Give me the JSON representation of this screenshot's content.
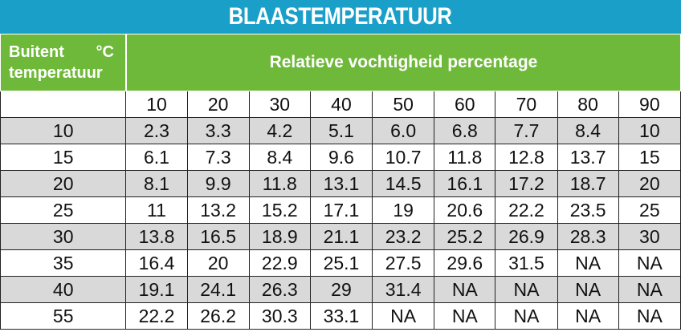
{
  "title": "BLAASTEMPERATUUR",
  "header": {
    "left_line1_a": "Buitent",
    "left_line1_b": "°C",
    "left_line2": "temperatuur",
    "right": "Relatieve vochtigheid percentage"
  },
  "columns": [
    "10",
    "20",
    "30",
    "40",
    "50",
    "60",
    "70",
    "80",
    "90"
  ],
  "rows": [
    {
      "temp": "10",
      "values": [
        "2.3",
        "3.3",
        "4.2",
        "5.1",
        "6.0",
        "6.8",
        "7.7",
        "8.4",
        "10"
      ]
    },
    {
      "temp": "15",
      "values": [
        "6.1",
        "7.3",
        "8.4",
        "9.6",
        "10.7",
        "11.8",
        "12.8",
        "13.7",
        "15"
      ]
    },
    {
      "temp": "20",
      "values": [
        "8.1",
        "9.9",
        "11.8",
        "13.1",
        "14.5",
        "16.1",
        "17.2",
        "18.7",
        "20"
      ]
    },
    {
      "temp": "25",
      "values": [
        "11",
        "13.2",
        "15.2",
        "17.1",
        "19",
        "20.6",
        "22.2",
        "23.5",
        "25"
      ]
    },
    {
      "temp": "30",
      "values": [
        "13.8",
        "16.5",
        "18.9",
        "21.1",
        "23.2",
        "25.2",
        "26.9",
        "28.3",
        "30"
      ]
    },
    {
      "temp": "35",
      "values": [
        "16.4",
        "20",
        "22.9",
        "25.1",
        "27.5",
        "29.6",
        "31.5",
        "NA",
        "NA"
      ]
    },
    {
      "temp": "40",
      "values": [
        "19.1",
        "24.1",
        "26.3",
        "29",
        "31.4",
        "NA",
        "NA",
        "NA",
        "NA"
      ]
    },
    {
      "temp": "55",
      "values": [
        "22.2",
        "26.2",
        "30.3",
        "33.1",
        "NA",
        "NA",
        "NA",
        "NA",
        "NA"
      ]
    }
  ],
  "colors": {
    "title_bg": "#1a9fc9",
    "header_bg": "#6fb93a",
    "stripe": "#d9d9d9"
  }
}
